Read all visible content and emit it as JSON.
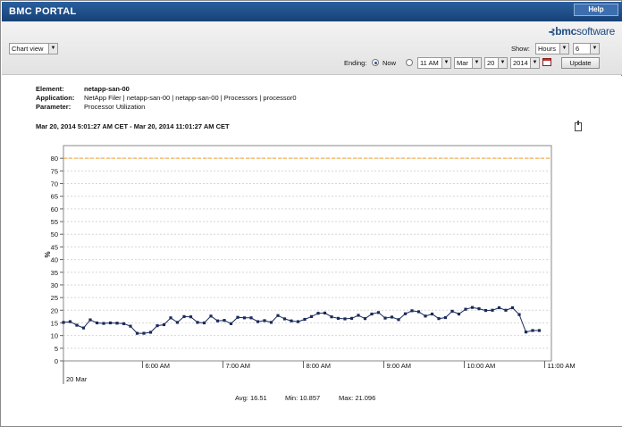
{
  "app": {
    "title": "BMC PORTAL",
    "help_label": "Help",
    "logo_prefix": "bmc",
    "logo_suffix": "software"
  },
  "toolbar": {
    "view_select": "Chart view",
    "show_label": "Show:",
    "show_unit": "Hours",
    "show_count": "6",
    "ending_label": "Ending:",
    "now_label": "Now",
    "ending_mode": "now",
    "hour": "11 AM",
    "month": "Mar",
    "day": "20",
    "year": "2014",
    "update_label": "Update"
  },
  "meta": {
    "element_key": "Element:",
    "element_value": "netapp-san-00",
    "application_key": "Application:",
    "application_value": "NetApp Filer | netapp-san-00 | netapp-san-00 | Processors | processor0",
    "parameter_key": "Parameter:",
    "parameter_value": "Processor Utilization"
  },
  "range": "Mar 20, 2014 5:01:27 AM CET - Mar 20, 2014 11:01:27 AM CET",
  "stats": {
    "avg": "Avg: 16.51",
    "min": "Min: 10.857",
    "max": "Max: 21.096"
  },
  "chart_data": {
    "type": "line",
    "ylabel": "%",
    "ylim": [
      0,
      85
    ],
    "yticks": [
      "0",
      "5",
      "10",
      "15",
      "20",
      "25",
      "30",
      "35",
      "40",
      "45",
      "50",
      "55",
      "60",
      "65",
      "70",
      "75",
      "80"
    ],
    "xlim": [
      "05:01",
      "11:05"
    ],
    "xticks": [
      {
        "t": "06:00",
        "label": "6:00 AM"
      },
      {
        "t": "07:00",
        "label": "7:00 AM"
      },
      {
        "t": "08:00",
        "label": "8:00 AM"
      },
      {
        "t": "09:00",
        "label": "9:00 AM"
      },
      {
        "t": "10:00",
        "label": "10:00 AM"
      },
      {
        "t": "11:00",
        "label": "11:00 AM"
      }
    ],
    "date_label": "20 Mar",
    "threshold": 80,
    "threshold_color": "#f0a030",
    "line_color": "#1a2a5a",
    "grid": true,
    "series": [
      {
        "x": [
          "05:01",
          "05:06",
          "05:11",
          "05:16",
          "05:21",
          "05:26",
          "05:31",
          "05:36",
          "05:41",
          "05:46",
          "05:51",
          "05:56",
          "06:01",
          "06:06",
          "06:11",
          "06:16",
          "06:21",
          "06:26",
          "06:31",
          "06:36",
          "06:41",
          "06:46",
          "06:51",
          "06:56",
          "07:01",
          "07:06",
          "07:11",
          "07:16",
          "07:21",
          "07:26",
          "07:31",
          "07:36",
          "07:41",
          "07:46",
          "07:51",
          "07:56",
          "08:01",
          "08:06",
          "08:11",
          "08:16",
          "08:21",
          "08:26",
          "08:31",
          "08:36",
          "08:41",
          "08:46",
          "08:51",
          "08:56",
          "09:01",
          "09:06",
          "09:11",
          "09:16",
          "09:21",
          "09:26",
          "09:31",
          "09:36",
          "09:41",
          "09:46",
          "09:51",
          "09:56",
          "10:01",
          "10:06",
          "10:11",
          "10:16",
          "10:21",
          "10:26",
          "10:31",
          "10:36",
          "10:41",
          "10:46",
          "10:51",
          "10:56"
        ],
        "y": [
          15.2,
          15.5,
          14.1,
          13.0,
          16.2,
          15.0,
          14.8,
          15.0,
          14.9,
          14.7,
          13.7,
          10.9,
          10.9,
          11.3,
          13.9,
          14.3,
          17.0,
          15.2,
          17.5,
          17.4,
          15.2,
          15.0,
          17.7,
          15.8,
          16.0,
          14.7,
          17.2,
          17.0,
          17.0,
          15.5,
          15.9,
          15.2,
          17.9,
          16.6,
          15.8,
          15.5,
          16.4,
          17.5,
          18.8,
          18.9,
          17.4,
          16.8,
          16.6,
          16.8,
          18.0,
          16.7,
          18.5,
          19.1,
          16.9,
          17.3,
          16.3,
          18.6,
          19.8,
          19.4,
          17.7,
          18.5,
          16.7,
          17.1,
          19.6,
          18.5,
          20.4,
          21.1,
          20.6,
          19.9,
          20.0,
          21.0,
          20.0,
          21.0,
          18.3,
          11.4,
          12.0,
          12.0
        ]
      }
    ]
  }
}
